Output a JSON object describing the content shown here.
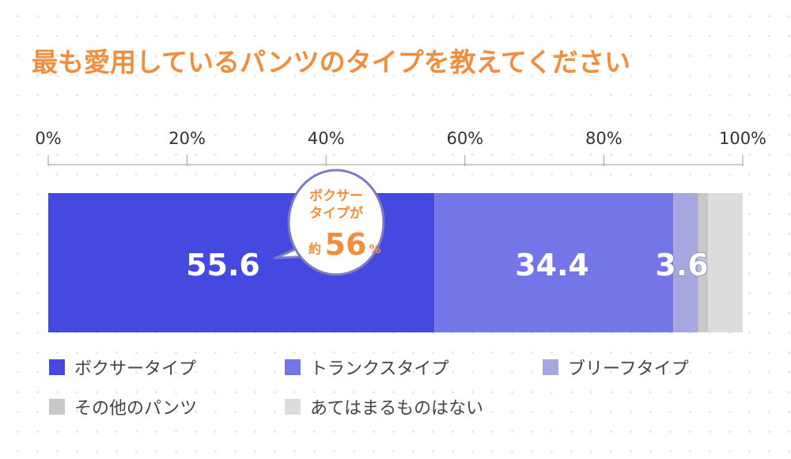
{
  "title": "最も愛用しているパンツのタイプを教えてください",
  "colors": {
    "title": "#f28d3c",
    "callout": "#f28d3c",
    "callout_border": "#7b7bc4"
  },
  "chart_data": {
    "type": "bar",
    "orientation": "horizontal-stacked",
    "xlim": [
      0,
      100
    ],
    "ticks": [
      "0%",
      "20%",
      "40%",
      "60%",
      "80%",
      "100%"
    ],
    "tick_values": [
      0,
      20,
      40,
      60,
      80,
      100
    ],
    "series": [
      {
        "name": "ボクサータイプ",
        "value": 55.6,
        "label": "55.6",
        "color": "#4649df"
      },
      {
        "name": "トランクスタイプ",
        "value": 34.4,
        "label": "34.4",
        "color": "#7475e7"
      },
      {
        "name": "ブリーフタイプ",
        "value": 3.6,
        "label": "3.6",
        "color": "#a7a7e0"
      },
      {
        "name": "その他のパンツ",
        "value": 1.4,
        "label": "",
        "color": "#c8c8c8"
      },
      {
        "name": "あてはまるものはない",
        "value": 5.0,
        "label": "",
        "color": "#dcdcdc"
      }
    ],
    "legend": "bottom",
    "annotation": {
      "line1": "ボクサー",
      "line2": "タイプが",
      "prefix": "約",
      "value": "56",
      "suffix": "%"
    }
  }
}
